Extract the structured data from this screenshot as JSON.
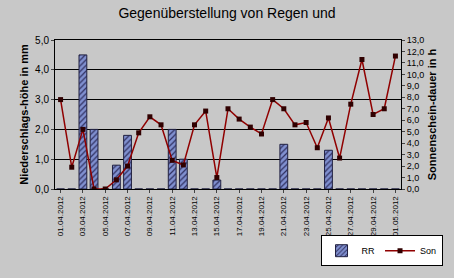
{
  "chart_data": {
    "type": "bar",
    "title": "Gegenüberstellung von Regen und",
    "y_label": "Niederschlags-höhe in mm",
    "y2_label": "Sonnenschein-dauer in h",
    "categories": [
      "01.04.2012",
      null,
      "03.04.2012",
      null,
      "05.04.2012",
      null,
      "07.04.2012",
      null,
      "09.04.2012",
      null,
      "11.04.2012",
      null,
      "13.04.2012",
      null,
      "15.04.2012",
      null,
      "17.04.2012",
      null,
      "19.04.2012",
      null,
      "21.04.2012",
      null,
      "23.04.2012",
      null,
      "25.04.2012",
      null,
      "27.04.2012",
      null,
      "29.04.2012",
      null,
      "01.05.2012"
    ],
    "series": [
      {
        "name": "RR",
        "type": "bar",
        "color": "#8090d0",
        "marker": "hatched",
        "values": [
          0,
          0,
          4.5,
          2.0,
          0,
          0.8,
          1.8,
          0,
          0,
          0,
          2.0,
          1.0,
          0,
          0,
          0.3,
          0,
          0,
          0,
          0,
          0,
          1.5,
          0,
          0,
          0,
          1.3,
          0,
          0,
          0,
          0,
          0,
          0
        ]
      },
      {
        "name": "Son",
        "type": "line",
        "axis": "y2",
        "color": "#900000",
        "marker": "square",
        "line_style": "solid",
        "values": [
          7.8,
          1.9,
          5.2,
          0.0,
          0.0,
          0.8,
          2.0,
          4.9,
          6.3,
          5.6,
          2.5,
          2.1,
          5.6,
          6.8,
          1.0,
          7.0,
          6.1,
          5.4,
          4.8,
          7.8,
          7.0,
          5.6,
          5.8,
          3.6,
          6.2,
          2.7,
          7.4,
          11.3,
          6.5,
          7.0,
          11.6
        ]
      }
    ],
    "ylim": [
      0,
      5
    ],
    "yticks": [
      {
        "value": 0,
        "label": "0,0"
      },
      {
        "value": 1,
        "label": "1,0"
      },
      {
        "value": 2,
        "label": "2,0"
      },
      {
        "value": 3,
        "label": "3,0"
      },
      {
        "value": 4,
        "label": "4,0"
      },
      {
        "value": 5,
        "label": "5,0"
      }
    ],
    "y2lim": [
      0,
      13
    ],
    "y2ticks": [
      {
        "value": 0,
        "label": "0,0"
      },
      {
        "value": 1,
        "label": "1,0"
      },
      {
        "value": 2,
        "label": "2,0"
      },
      {
        "value": 3,
        "label": "3,0"
      },
      {
        "value": 4,
        "label": "4,0"
      },
      {
        "value": 5,
        "label": "5,0"
      },
      {
        "value": 6,
        "label": "6,0"
      },
      {
        "value": 7,
        "label": "7,0"
      },
      {
        "value": 8,
        "label": "8,0"
      },
      {
        "value": 9,
        "label": "9,0"
      },
      {
        "value": 10,
        "label": "10,0"
      },
      {
        "value": 11,
        "label": "11,0"
      },
      {
        "value": 12,
        "label": "12,0"
      },
      {
        "value": 13,
        "label": "13,0"
      }
    ],
    "grid": true,
    "legend": "bottom right"
  }
}
